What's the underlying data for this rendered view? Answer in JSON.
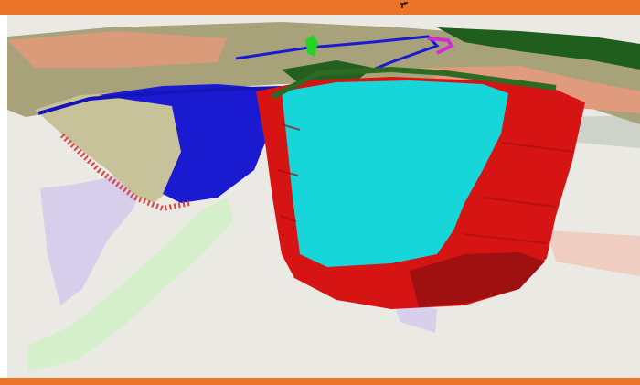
{
  "viewer": {
    "frame_color": "#e9742a",
    "background_color": "#ebe9e4"
  },
  "model": {
    "objects": [
      {
        "name": "terrain-surface",
        "color": "#a8a27a"
      },
      {
        "name": "vegetation",
        "color": "#1f5e1c"
      },
      {
        "name": "pit-shell-blue",
        "color": "#1a1ad1"
      },
      {
        "name": "orebody-cyan",
        "color": "#17d6d9"
      },
      {
        "name": "orebody-red",
        "color": "#d61414"
      },
      {
        "name": "drift-lavender",
        "color": "#c6b9f2"
      },
      {
        "name": "drift-green",
        "color": "#c3f5b5"
      },
      {
        "name": "zone-salmon",
        "color": "#f2b7a4"
      }
    ]
  }
}
